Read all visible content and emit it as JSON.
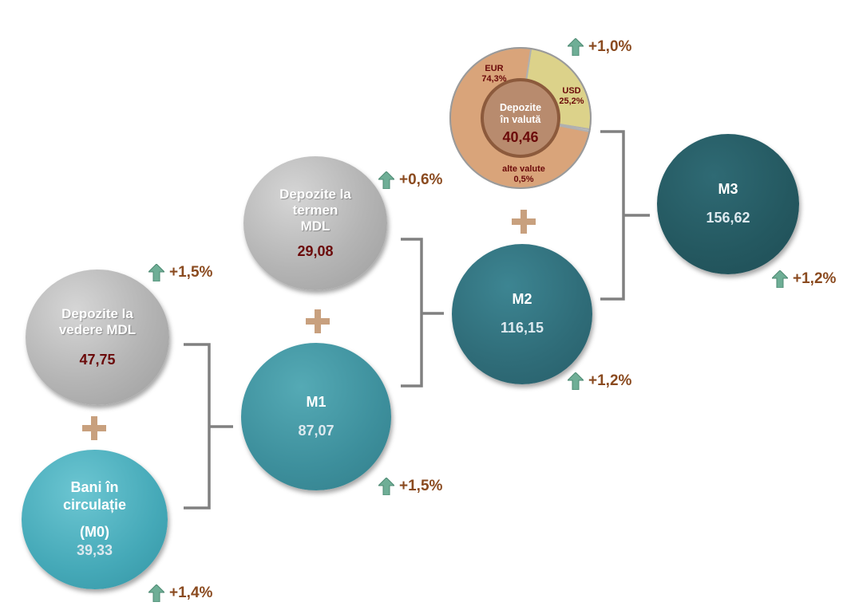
{
  "nodes": {
    "vedere": {
      "label_line1": "Depozite la",
      "label_line2": "vedere MDL",
      "value": "47,75"
    },
    "bani": {
      "label_line1": "Bani în",
      "label_line2": "circulație",
      "label_line3": "(M0)",
      "value": "39,33"
    },
    "termen": {
      "label_line1": "Depozite la",
      "label_line2": "termen",
      "label_line3": "MDL",
      "value": "29,08"
    },
    "m1": {
      "label": "M1",
      "value": "87,07"
    },
    "m2": {
      "label": "M2",
      "value": "116,15"
    },
    "m3": {
      "label": "M3",
      "value": "156,62"
    },
    "valuta": {
      "label_line1": "Depozite",
      "label_line2": "în valută",
      "value": "40,46"
    }
  },
  "pie": {
    "slices": [
      {
        "name": "EUR",
        "value": 74.3,
        "value_label": "74,3%",
        "color": "#d9a47a"
      },
      {
        "name": "USD",
        "value": 25.2,
        "value_label": "25,2%",
        "color": "#dcd28a"
      },
      {
        "name": "alte valute",
        "value": 0.5,
        "value_label": "0,5%",
        "color": "#c9c9c9"
      }
    ]
  },
  "changes": {
    "vedere": "+1,5%",
    "bani": "+1,4%",
    "termen": "+0,6%",
    "m1": "+1,5%",
    "m2": "+1,2%",
    "valuta": "+1,0%",
    "m3": "+1,2%"
  },
  "colors": {
    "arrow": "#6fae96",
    "plus": "#c8a07e",
    "bracket": "#808080",
    "change_text": "#8a4a1f"
  }
}
